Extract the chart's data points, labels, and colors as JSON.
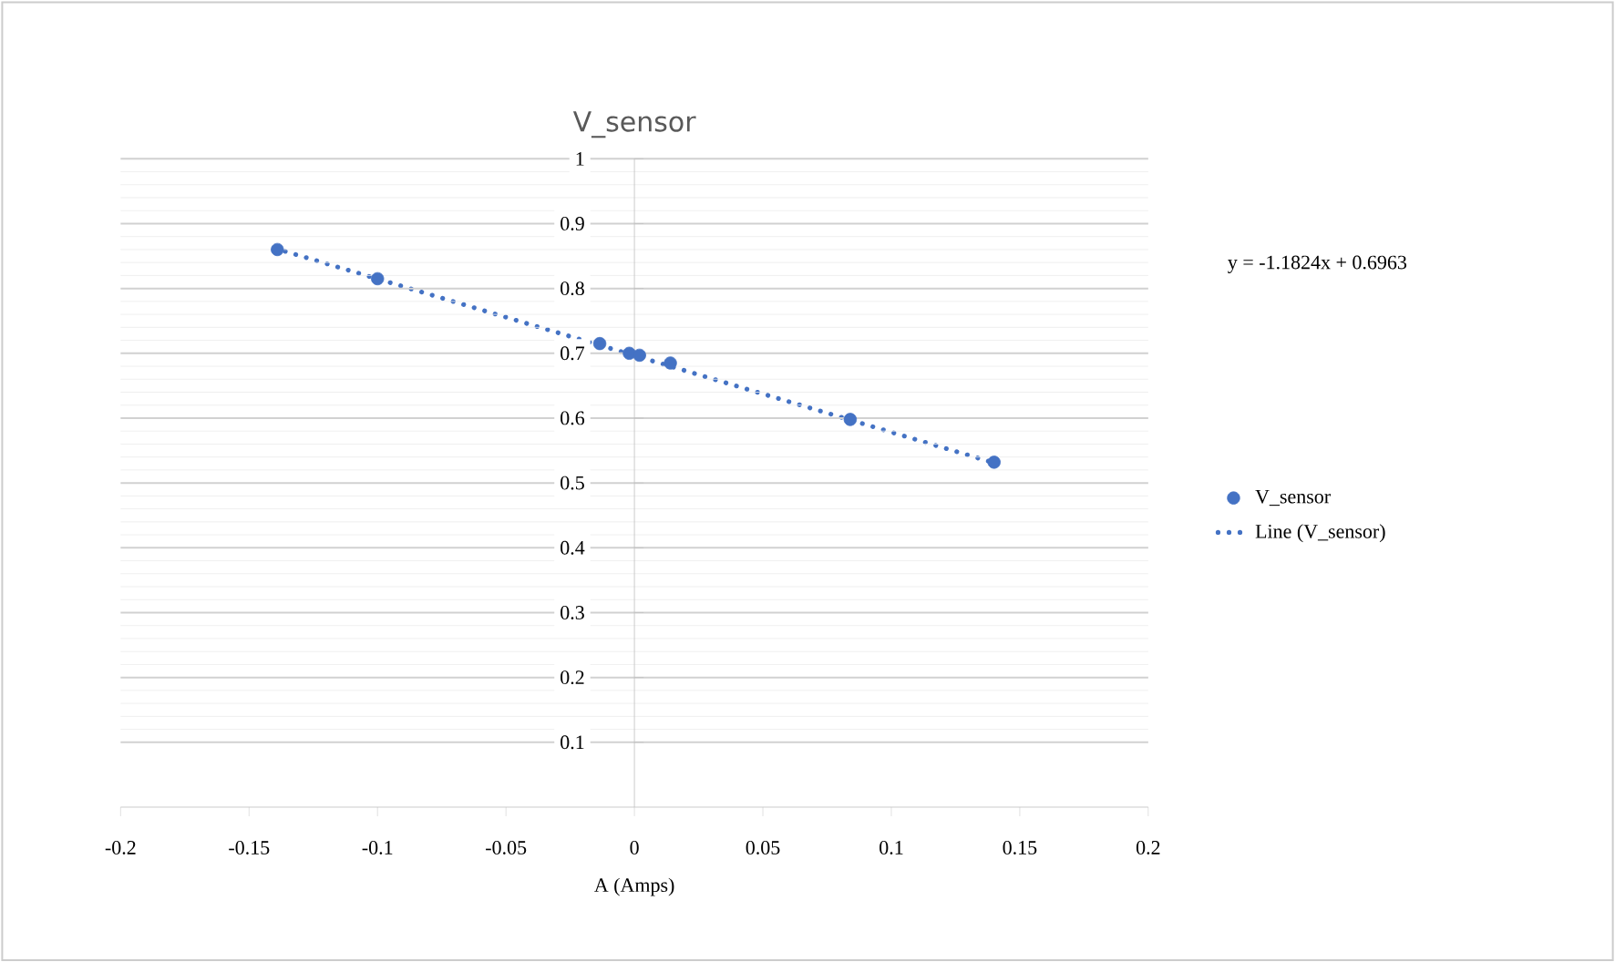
{
  "chart_data": {
    "type": "scatter",
    "title": "V_sensor",
    "xlabel": "A (Amps)",
    "annotations": [
      "y = -1.1824x + 0.6963"
    ],
    "series": [
      {
        "name": "V_sensor",
        "color": "#4472c4",
        "marker": "circle",
        "x": [
          -0.139,
          -0.1,
          -0.0135,
          -0.002,
          0.002,
          0.014,
          0.084,
          0.14
        ],
        "values": [
          0.86,
          0.815,
          0.715,
          0.7,
          0.697,
          0.685,
          0.598,
          0.532
        ]
      },
      {
        "name": "Line (V_sensor)",
        "type": "line",
        "color": "#4472c4",
        "marker": "none",
        "line_style": "dotted",
        "x": [
          -0.14,
          0.14
        ],
        "values": [
          0.862,
          0.531
        ]
      }
    ],
    "xlim": [
      -0.2,
      0.2
    ],
    "xticks": [
      -0.2,
      -0.15,
      -0.1,
      -0.05,
      0,
      0.05,
      0.1,
      0.15,
      0.2
    ],
    "ylim": [
      0,
      1
    ],
    "yticks": [
      0.1,
      0.2,
      0.3,
      0.4,
      0.5,
      0.6,
      0.7,
      0.8,
      0.9,
      1
    ],
    "grid": "y",
    "legend": "right"
  }
}
